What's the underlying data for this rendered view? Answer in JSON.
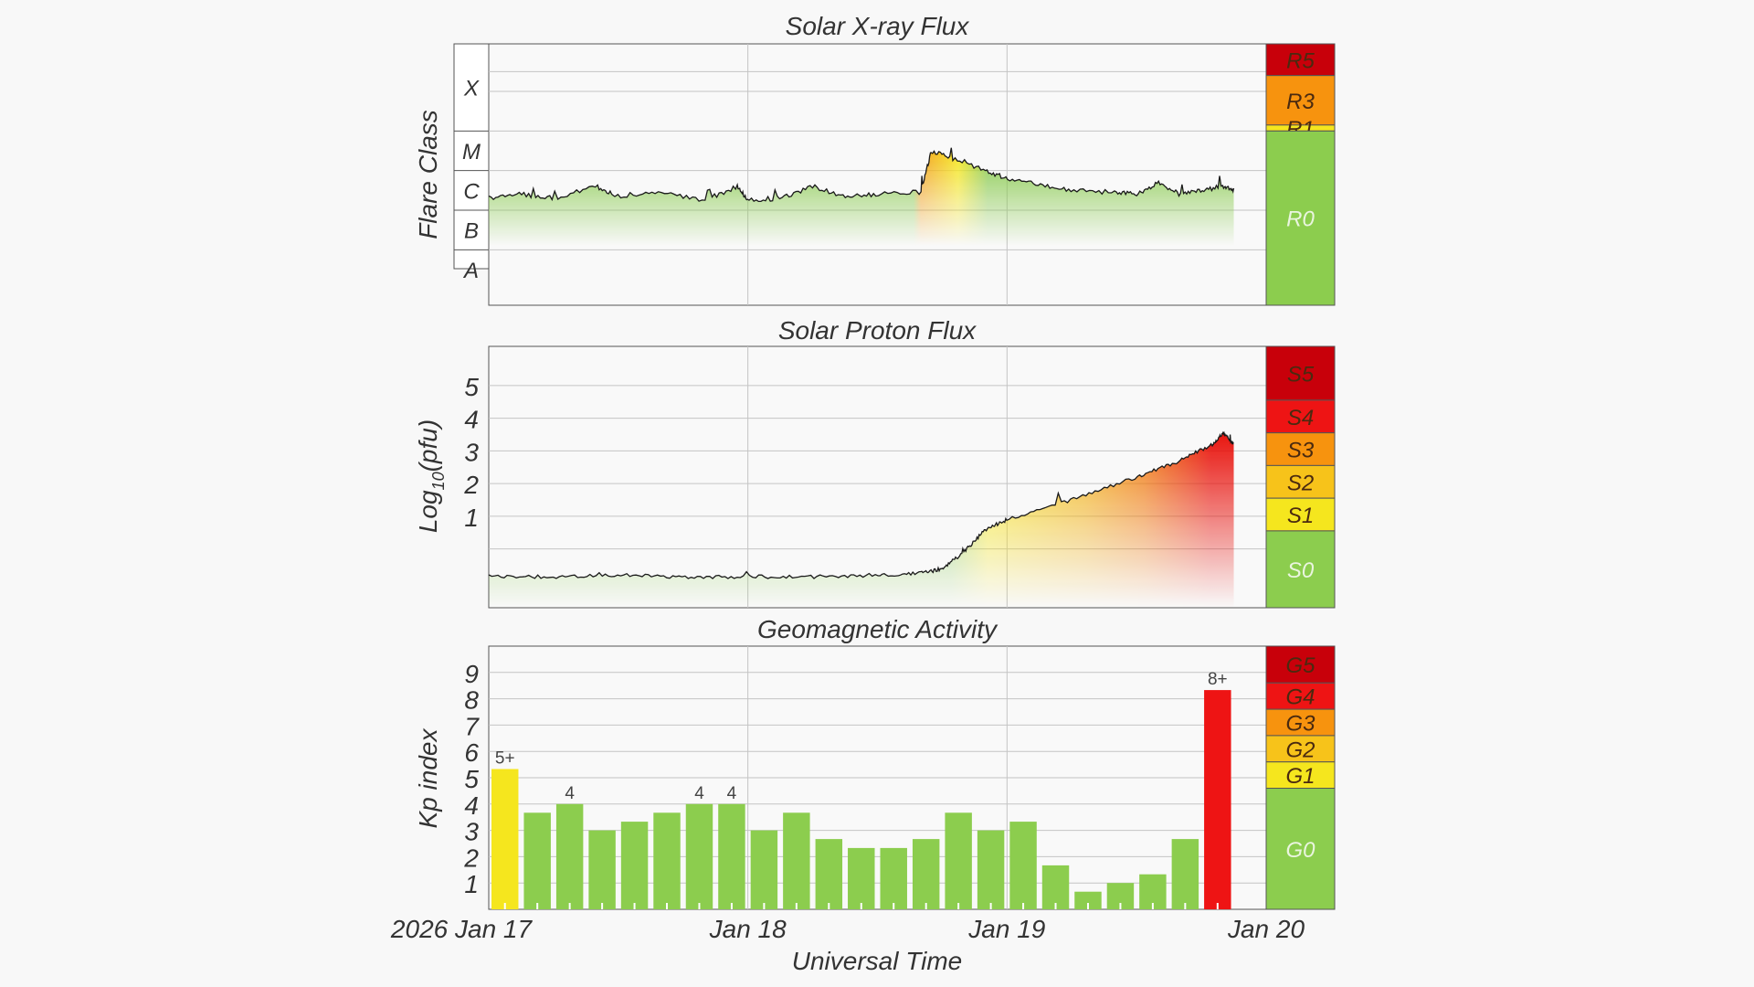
{
  "chart_data": [
    {
      "type": "area",
      "title": "Solar X-ray Flux",
      "ylabel": "Flare Class",
      "scale": "log",
      "y_classes": [
        "A",
        "B",
        "C",
        "M",
        "X"
      ],
      "ylim": [
        -8.4,
        -1.8
      ],
      "x": [
        "2026-01-17 00:00",
        "2026-01-17 03:00",
        "2026-01-17 06:00",
        "2026-01-17 10:00",
        "2026-01-17 12:00",
        "2026-01-17 16:00",
        "2026-01-17 20:00",
        "2026-01-17 23:00",
        "2026-01-18 00:00",
        "2026-01-18 03:00",
        "2026-01-18 06:00",
        "2026-01-18 09:00",
        "2026-01-18 12:00",
        "2026-01-18 16:00",
        "2026-01-18 17:00",
        "2026-01-18 19:00",
        "2026-01-18 22:00",
        "2026-01-19 00:00",
        "2026-01-19 03:00",
        "2026-01-19 06:00",
        "2026-01-19 10:00",
        "2026-01-19 12:00",
        "2026-01-19 14:00",
        "2026-01-19 16:00",
        "2026-01-19 18:00",
        "2026-01-19 20:00",
        "2026-01-19 21:00"
      ],
      "flux_log10": [
        -5.7,
        -5.6,
        -5.7,
        -5.4,
        -5.65,
        -5.55,
        -5.75,
        -5.4,
        -5.75,
        -5.7,
        -5.4,
        -5.65,
        -5.6,
        -5.55,
        -4.5,
        -4.7,
        -5.0,
        -5.2,
        -5.35,
        -5.5,
        -5.55,
        -5.6,
        -5.3,
        -5.6,
        -5.5,
        -5.4,
        -5.5
      ],
      "zones": [
        {
          "label": "R5",
          "color": "#c8000a"
        },
        {
          "label": "R3",
          "color": "#f7930e"
        },
        {
          "label": "R1",
          "color": "#f5e61e"
        },
        {
          "label": "R0",
          "color": "#8ccd4e"
        }
      ]
    },
    {
      "type": "area",
      "title": "Solar Proton Flux",
      "ylabel": "Log",
      "ylabel_sub": "10",
      "ylabel_tail": "(pfu)",
      "yticks": [
        "1",
        "2",
        "3",
        "4",
        "5"
      ],
      "ylim": [
        -1.8,
        6.2
      ],
      "x": [
        "2026-01-17 00:00",
        "2026-01-17 06:00",
        "2026-01-17 12:00",
        "2026-01-17 18:00",
        "2026-01-18 00:00",
        "2026-01-18 06:00",
        "2026-01-18 12:00",
        "2026-01-18 16:00",
        "2026-01-18 18:00",
        "2026-01-18 20:00",
        "2026-01-18 22:00",
        "2026-01-19 00:00",
        "2026-01-19 06:00",
        "2026-01-19 12:00",
        "2026-01-19 16:00",
        "2026-01-19 19:00",
        "2026-01-19 20:00",
        "2026-01-19 21:00"
      ],
      "log_pfu": [
        -0.85,
        -0.85,
        -0.8,
        -0.85,
        -0.85,
        -0.85,
        -0.8,
        -0.75,
        -0.6,
        -0.1,
        0.6,
        0.9,
        1.5,
        2.2,
        2.7,
        3.2,
        3.55,
        3.2
      ],
      "zones": [
        {
          "label": "S5",
          "color": "#c8000a"
        },
        {
          "label": "S4",
          "color": "#ee1414"
        },
        {
          "label": "S3",
          "color": "#f7930e"
        },
        {
          "label": "S2",
          "color": "#f7c31a"
        },
        {
          "label": "S1",
          "color": "#f5e61e"
        },
        {
          "label": "S0",
          "color": "#8ccd4e"
        }
      ]
    },
    {
      "type": "bar",
      "title": "Geomagnetic Activity",
      "ylabel": "Kp index",
      "yticks": [
        "1",
        "2",
        "3",
        "4",
        "5",
        "6",
        "7",
        "8",
        "9"
      ],
      "ylim": [
        0,
        10
      ],
      "values": [
        5.33,
        3.67,
        4.0,
        3.0,
        3.33,
        3.67,
        4.0,
        4.0,
        3.0,
        3.67,
        2.67,
        2.33,
        2.33,
        2.67,
        3.67,
        3.0,
        3.33,
        1.67,
        0.67,
        1.0,
        1.33,
        2.67,
        8.33
      ],
      "bar_labels": [
        "5+",
        "",
        "4",
        "",
        "",
        "",
        "4",
        "4",
        "",
        "",
        "",
        "",
        "",
        "",
        "",
        "",
        "",
        "",
        "",
        "",
        "",
        "",
        "8+"
      ],
      "bar_colors": [
        "#f5e61e",
        "#8ccd4e",
        "#8ccd4e",
        "#8ccd4e",
        "#8ccd4e",
        "#8ccd4e",
        "#8ccd4e",
        "#8ccd4e",
        "#8ccd4e",
        "#8ccd4e",
        "#8ccd4e",
        "#8ccd4e",
        "#8ccd4e",
        "#8ccd4e",
        "#8ccd4e",
        "#8ccd4e",
        "#8ccd4e",
        "#8ccd4e",
        "#8ccd4e",
        "#8ccd4e",
        "#8ccd4e",
        "#8ccd4e",
        "#ee1414"
      ],
      "zones": [
        {
          "label": "G5",
          "color": "#c8000a"
        },
        {
          "label": "G4",
          "color": "#ee1414"
        },
        {
          "label": "G3",
          "color": "#f7930e"
        },
        {
          "label": "G2",
          "color": "#f7c31a"
        },
        {
          "label": "G1",
          "color": "#f5e61e"
        },
        {
          "label": "G0",
          "color": "#8ccd4e"
        }
      ]
    }
  ],
  "xaxis": {
    "label": "Universal Time",
    "tick_labels": [
      "2026 Jan 17",
      "Jan 18",
      "Jan 19",
      "Jan 20"
    ],
    "range": [
      "2026-01-17 00:00",
      "2026-01-20 00:00"
    ]
  }
}
